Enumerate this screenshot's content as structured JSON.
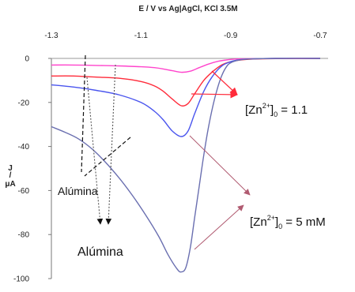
{
  "chart_data": {
    "type": "line",
    "title": "E / V vs Ag|AgCl, KCl 3.5M",
    "ylabel_top": "J",
    "ylabel_mid": "/",
    "ylabel_bottom": "μA",
    "x_ticks": [
      "-1.3",
      "-1.1",
      "-0.9",
      "-0.7"
    ],
    "y_ticks": [
      "0",
      "-20",
      "-40",
      "-60",
      "-80",
      "-100"
    ],
    "xlim": [
      -1.3,
      -0.7
    ],
    "ylim": [
      -100,
      0
    ],
    "x_axis_position": "top",
    "grid": false,
    "series": [
      {
        "color": "#ff44cc",
        "x": [
          -1.3,
          -1.25,
          -1.2,
          -1.15,
          -1.1,
          -1.07,
          -1.05,
          -1.03,
          -1.01,
          -0.99,
          -0.97,
          -0.95,
          -0.93,
          -0.91,
          -0.89,
          -0.85,
          -0.8,
          -0.75,
          -0.7
        ],
        "y": [
          -3.0,
          -3.0,
          -3.2,
          -3.4,
          -3.8,
          -4.2,
          -4.8,
          -5.6,
          -6.3,
          -5.8,
          -4.2,
          -2.6,
          -1.4,
          -0.7,
          -0.3,
          -0.1,
          -0.05,
          0,
          0
        ]
      },
      {
        "color": "#ff2b3a",
        "x": [
          -1.3,
          -1.25,
          -1.2,
          -1.15,
          -1.1,
          -1.07,
          -1.05,
          -1.03,
          -1.01,
          -0.995,
          -0.98,
          -0.96,
          -0.94,
          -0.92,
          -0.9,
          -0.88,
          -0.85,
          -0.8,
          -0.7
        ],
        "y": [
          -8.0,
          -8.0,
          -8.5,
          -9.0,
          -10.5,
          -12.5,
          -15.0,
          -18.5,
          -21.5,
          -20.5,
          -16.0,
          -10.0,
          -6.0,
          -3.0,
          -1.5,
          -0.8,
          -0.3,
          -0.1,
          0
        ]
      },
      {
        "color": "#4a55ee",
        "x": [
          -1.3,
          -1.25,
          -1.2,
          -1.15,
          -1.1,
          -1.07,
          -1.05,
          -1.03,
          -1.01,
          -0.995,
          -0.98,
          -0.96,
          -0.94,
          -0.92,
          -0.9,
          -0.88,
          -0.85,
          -0.8,
          -0.7
        ],
        "y": [
          -12.0,
          -13.0,
          -14.5,
          -16.5,
          -20.0,
          -24.0,
          -28.0,
          -33.0,
          -35.5,
          -33.0,
          -25.0,
          -15.0,
          -8.0,
          -3.5,
          -1.5,
          -0.6,
          -0.2,
          0,
          0
        ]
      },
      {
        "color": "#6a6fb0",
        "x": [
          -1.3,
          -1.27,
          -1.24,
          -1.21,
          -1.18,
          -1.15,
          -1.12,
          -1.09,
          -1.06,
          -1.04,
          -1.02,
          -1.01,
          -1.0,
          -0.99,
          -0.98,
          -0.97,
          -0.96,
          -0.95,
          -0.94,
          -0.93,
          -0.92,
          -0.91,
          -0.9,
          -0.88,
          -0.85,
          -0.8,
          -0.7
        ],
        "y": [
          -31.0,
          -33.5,
          -36.5,
          -41.0,
          -47.0,
          -54.0,
          -62.0,
          -71.0,
          -81.0,
          -89.0,
          -95.5,
          -97.0,
          -95.0,
          -86.0,
          -72.0,
          -58.0,
          -44.0,
          -32.0,
          -22.0,
          -14.0,
          -8.0,
          -4.0,
          -2.0,
          -0.7,
          -0.2,
          0,
          0
        ]
      }
    ],
    "annotations": {
      "label_1_pre": "[Zn",
      "label_1_sup": "2+",
      "label_1_post": "]",
      "label_1_sub": "0",
      "label_1_val": " = 1.1",
      "label_2_pre": "[Zn",
      "label_2_sup": "2+",
      "label_2_post": "]",
      "label_2_sub": "0",
      "label_2_val": " = 5 mM",
      "alumina_1": "Alúmina",
      "alumina_2": "Alúmina"
    }
  }
}
